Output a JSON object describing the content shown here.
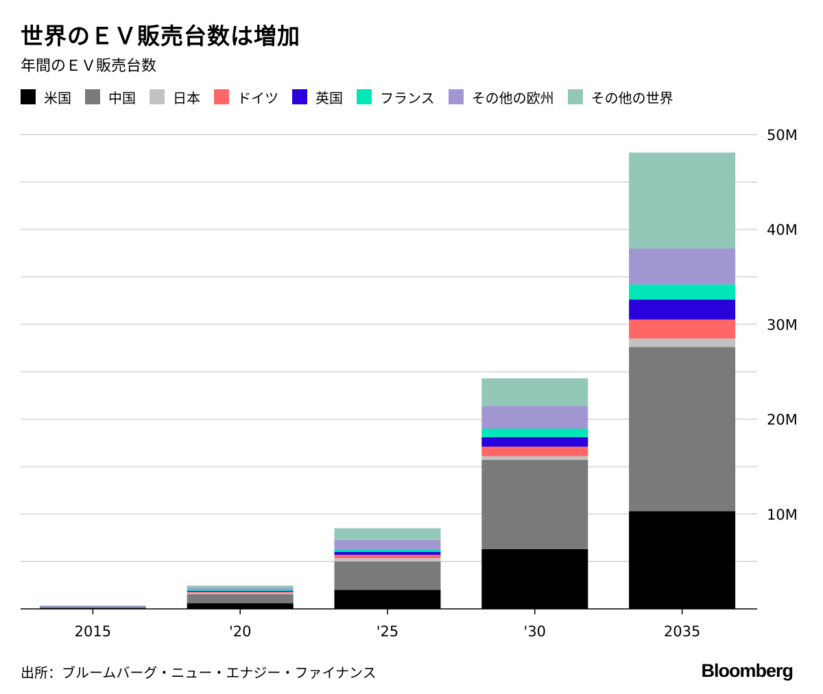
{
  "title": "世界のＥＶ販売台数は増加",
  "subtitle": "年間のＥＶ販売台数",
  "source": "出所：ブルームバーグ・ニュー・エナジー・ファイナンス",
  "brand": "Bloomberg",
  "legend": [
    {
      "label": "米国",
      "color": "#000000"
    },
    {
      "label": "中国",
      "color": "#7a7a7a"
    },
    {
      "label": "日本",
      "color": "#c2c2c2"
    },
    {
      "label": "ドイツ",
      "color": "#ff6666"
    },
    {
      "label": "英国",
      "color": "#2a00dc"
    },
    {
      "label": "フランス",
      "color": "#00e6b8"
    },
    {
      "label": "その他の欧州",
      "color": "#a296d2"
    },
    {
      "label": "その他の世界",
      "color": "#93c7b8"
    }
  ],
  "chart_data": {
    "type": "bar",
    "stacked": true,
    "title": "世界のＥＶ販売台数は増加",
    "subtitle": "年間のＥＶ販売台数",
    "categories": [
      "2015",
      "'20",
      "'25",
      "'30",
      "2035"
    ],
    "ylim": [
      0,
      50
    ],
    "y_unit": "M",
    "yticks": [
      10,
      20,
      30,
      40,
      50
    ],
    "ytick_labels": [
      "10M",
      "20M",
      "30M",
      "40M",
      "50M"
    ],
    "grid_step": 5,
    "axis_position": "right",
    "series": [
      {
        "name": "米国",
        "color": "#000000",
        "values": [
          0.1,
          0.6,
          2.0,
          6.3,
          10.3
        ]
      },
      {
        "name": "中国",
        "color": "#7a7a7a",
        "values": [
          0.1,
          0.95,
          3.0,
          9.4,
          17.3
        ]
      },
      {
        "name": "日本",
        "color": "#c2c2c2",
        "values": [
          0.02,
          0.15,
          0.35,
          0.4,
          0.9
        ]
      },
      {
        "name": "ドイツ",
        "color": "#ff6666",
        "values": [
          0.02,
          0.1,
          0.35,
          1.0,
          2.0
        ]
      },
      {
        "name": "英国",
        "color": "#2a00dc",
        "values": [
          0.02,
          0.1,
          0.3,
          1.0,
          2.1
        ]
      },
      {
        "name": "フランス",
        "color": "#00e6b8",
        "values": [
          0.02,
          0.1,
          0.3,
          0.9,
          1.6
        ]
      },
      {
        "name": "その他の欧州",
        "color": "#a296d2",
        "values": [
          0.04,
          0.2,
          0.95,
          2.4,
          3.8
        ]
      },
      {
        "name": "その他の世界",
        "color": "#93c7b8",
        "values": [
          0.03,
          0.25,
          1.25,
          2.9,
          10.1
        ]
      }
    ]
  }
}
